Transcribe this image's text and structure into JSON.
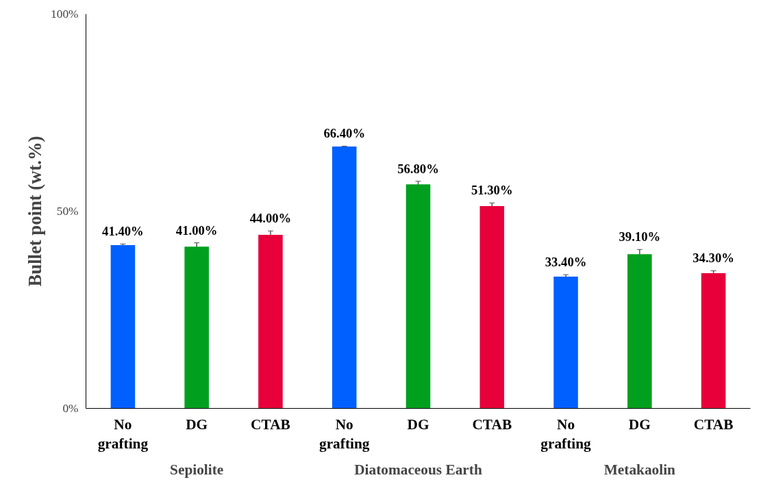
{
  "chart_data": {
    "type": "bar",
    "ylabel": "Bullet point (wt.%)",
    "categories": [
      "No grafting",
      "DG",
      "CTAB",
      "No grafting",
      "DG",
      "CTAB",
      "No grafting",
      "DG",
      "CTAB"
    ],
    "annotations": [
      "Sepiolite",
      "Diatomaceous Earth",
      "Metakaolin"
    ],
    "values": [
      41.4,
      41.0,
      44.0,
      66.4,
      56.8,
      51.3,
      33.4,
      39.1,
      34.3
    ],
    "errors": [
      0.3,
      1.0,
      1.0,
      0.1,
      0.8,
      0.8,
      0.5,
      1.2,
      0.6
    ],
    "value_labels": [
      "41.40%",
      "41.00%",
      "44.00%",
      "66.40%",
      "56.80%",
      "51.30%",
      "33.40%",
      "39.10%",
      "34.30%"
    ],
    "colors": [
      "#0060ff",
      "#00a01e",
      "#e8003a",
      "#0060ff",
      "#00a01e",
      "#e8003a",
      "#0060ff",
      "#00a01e",
      "#e8003a"
    ],
    "ylim": [
      0,
      100
    ],
    "yticks": [
      {
        "value": 0,
        "label": "0%"
      },
      {
        "value": 50,
        "label": "50%"
      },
      {
        "value": 100,
        "label": "100%"
      }
    ],
    "grid": false
  }
}
